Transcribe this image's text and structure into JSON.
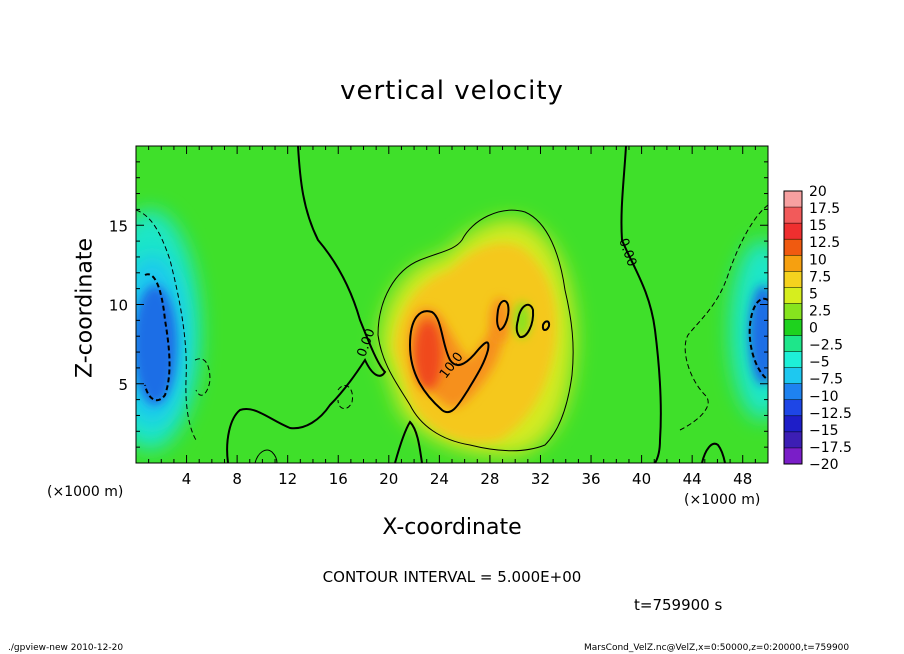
{
  "chart_data": {
    "type": "heatmap",
    "title": "vertical velocity",
    "xlabel": "X-coordinate",
    "ylabel": "Z-coordinate",
    "x_unit_label": "(×1000 m)",
    "xlim": [
      0,
      50
    ],
    "ylim": [
      0,
      20
    ],
    "x_ticks": [
      4,
      8,
      12,
      16,
      20,
      24,
      28,
      32,
      36,
      40,
      44,
      48
    ],
    "y_ticks": [
      5,
      10,
      15
    ],
    "colorbar": {
      "levels": [
        20,
        17.5,
        15,
        12.5,
        10,
        7.5,
        5,
        2.5,
        0,
        -2.5,
        -5,
        -7.5,
        -10,
        -12.5,
        -15,
        -17.5,
        -20
      ],
      "labels": [
        "20",
        "17.5",
        "15",
        "12.5",
        "10",
        "7.5",
        "5",
        "2.5",
        "0",
        "−2.5",
        "−5",
        "−7.5",
        "−10",
        "−12.5",
        "−15",
        "−17.5",
        "−20"
      ],
      "colors": [
        "#f7a0a0",
        "#f25a5a",
        "#ef2f2f",
        "#f05a10",
        "#f6a010",
        "#f5d21e",
        "#d6ee1e",
        "#86e41e",
        "#1ed21e",
        "#1ee68a",
        "#1ef0d8",
        "#1ec8f0",
        "#1e82f0",
        "#1e46e6",
        "#1e1ec8",
        "#3c1eb4",
        "#7a1ec8"
      ]
    },
    "background_color": "#3fe02a",
    "contour_labels": [
      {
        "text": "0.00",
        "x": 18.5,
        "y": 7.5,
        "rotate": -70
      },
      {
        "text": "0.00",
        "x": 38.6,
        "y": 13.2,
        "rotate": 70
      },
      {
        "text": "10.0",
        "x": 25.2,
        "y": 6.0,
        "rotate": -52
      }
    ],
    "contour_interval": "CONTOUR INTERVAL = 5.000E+00",
    "time": "t=759900 s"
  },
  "footer": {
    "left": "./gpview-new   2010-12-20",
    "right": "MarsCond_VelZ.nc@VelZ,x=0:50000,z=0:20000,t=759900"
  },
  "colors": {
    "positive_core": "#f2441a",
    "positive_mid": "#f7b21c",
    "positive_low": "#d4ea22",
    "negative_core": "#1e6ee6",
    "negative_mid": "#1ec8f0",
    "background": "#3fe02a"
  }
}
